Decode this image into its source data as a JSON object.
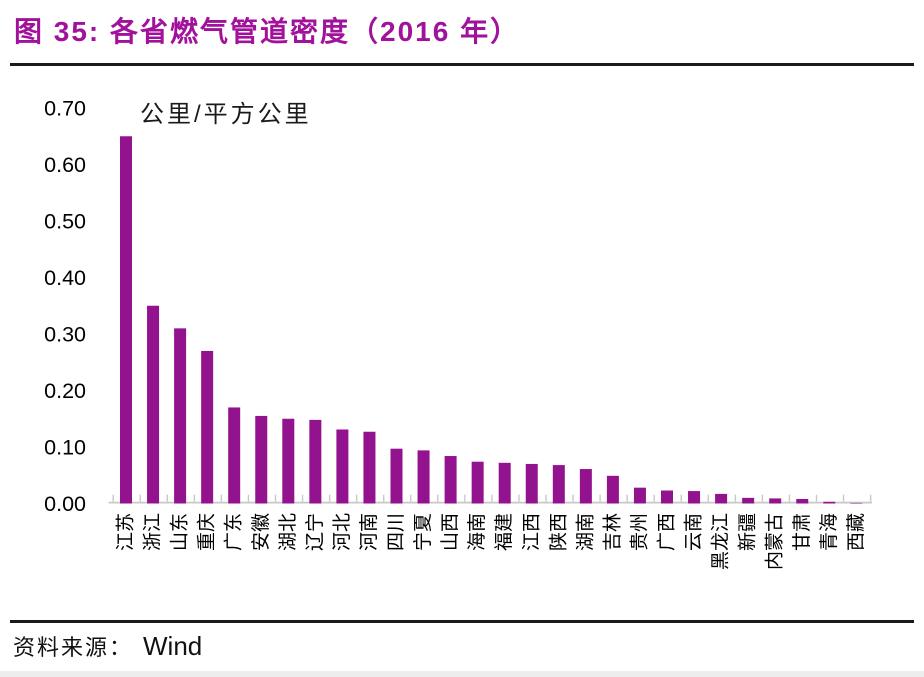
{
  "header": {
    "title": "图 35: 各省燃气管道密度（2016 年）"
  },
  "footer": {
    "source_label": "资料来源：",
    "source_value": "Wind"
  },
  "colors": {
    "title": "#A2119B",
    "bar": "#93128D",
    "rule": "#1A1A1A",
    "axis": "#C9C9C9",
    "text": "#000000"
  },
  "chart_data": {
    "type": "bar",
    "title": "图 35: 各省燃气管道密度（2016 年）",
    "unit_label": "公里/平方公里",
    "categories": [
      "江苏",
      "浙江",
      "山东",
      "重庆",
      "广东",
      "安徽",
      "湖北",
      "辽宁",
      "河北",
      "河南",
      "四川",
      "宁夏",
      "山西",
      "海南",
      "福建",
      "江西",
      "陕西",
      "湖南",
      "吉林",
      "贵州",
      "广西",
      "云南",
      "黑龙江",
      "新疆",
      "内蒙古",
      "甘肃",
      "青海",
      "西藏"
    ],
    "values": [
      0.65,
      0.35,
      0.31,
      0.27,
      0.17,
      0.155,
      0.15,
      0.148,
      0.131,
      0.127,
      0.097,
      0.094,
      0.084,
      0.074,
      0.072,
      0.07,
      0.068,
      0.061,
      0.049,
      0.028,
      0.023,
      0.022,
      0.017,
      0.01,
      0.009,
      0.008,
      0.003,
      0.001
    ],
    "xlabel": "",
    "ylabel": "",
    "ylim": [
      0,
      0.7
    ],
    "ytick_step": 0.1,
    "ytick_labels": [
      "0.00",
      "0.10",
      "0.20",
      "0.30",
      "0.40",
      "0.50",
      "0.60",
      "0.70"
    ],
    "grid": false,
    "legend": "none",
    "bar_color": "#93128D",
    "axis_color": "#C9C9C9",
    "text_color": "#000000",
    "x_labels_rotated_deg": -90
  }
}
